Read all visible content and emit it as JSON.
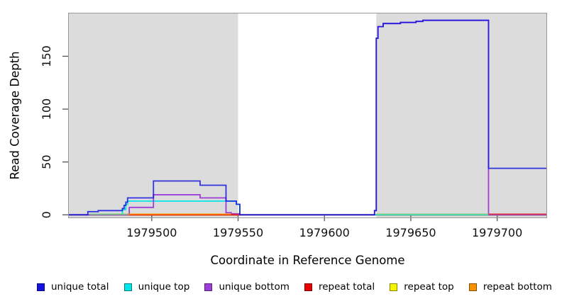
{
  "chart_data": {
    "type": "line",
    "style": "step",
    "title": "",
    "xlabel": "Coordinate in Reference Genome",
    "ylabel": "Read Coverage Depth",
    "xlim": [
      1979452,
      1979728.5
    ],
    "ylim": [
      -2.5,
      190.5
    ],
    "x_ticks": [
      1979500,
      1979550,
      1979600,
      1979650,
      1979700
    ],
    "y_ticks": [
      0,
      50,
      100,
      150
    ],
    "grid": false,
    "panel_bg": "#ffffff",
    "shaded_regions": [
      {
        "x0": 1979452,
        "x1": 1979550,
        "color": "#dcdcdc"
      },
      {
        "x0": 1979630,
        "x1": 1979728.5,
        "color": "#dcdcdc"
      }
    ],
    "legend_position": "bottom",
    "series": [
      {
        "name": "unique total",
        "color": "#1414e0",
        "points": [
          [
            1979452,
            0
          ],
          [
            1979463,
            3
          ],
          [
            1979469,
            4
          ],
          [
            1979483,
            6
          ],
          [
            1979484,
            9
          ],
          [
            1979485,
            12
          ],
          [
            1979486,
            16
          ],
          [
            1979501,
            32
          ],
          [
            1979528,
            28
          ],
          [
            1979543,
            13
          ],
          [
            1979549,
            10
          ],
          [
            1979551,
            0
          ],
          [
            1979629,
            4
          ],
          [
            1979630,
            167
          ],
          [
            1979631,
            178
          ],
          [
            1979634,
            181
          ],
          [
            1979644,
            182
          ],
          [
            1979653,
            183
          ],
          [
            1979657,
            184
          ],
          [
            1979695,
            44
          ],
          [
            1979728.5,
            44
          ]
        ]
      },
      {
        "name": "unique top",
        "color": "#00e5e5",
        "points": [
          [
            1979452,
            0
          ],
          [
            1979483,
            5
          ],
          [
            1979485,
            10
          ],
          [
            1979486,
            13
          ],
          [
            1979549,
            10
          ],
          [
            1979551,
            0
          ],
          [
            1979728.5,
            0
          ]
        ]
      },
      {
        "name": "unique bottom",
        "color": "#9d3fd6",
        "points": [
          [
            1979452,
            0
          ],
          [
            1979487,
            7
          ],
          [
            1979501,
            19
          ],
          [
            1979528,
            16
          ],
          [
            1979543,
            2
          ],
          [
            1979546,
            1
          ],
          [
            1979551,
            0
          ],
          [
            1979629,
            4
          ],
          [
            1979630,
            167
          ],
          [
            1979631,
            178
          ],
          [
            1979634,
            181
          ],
          [
            1979644,
            182
          ],
          [
            1979653,
            183
          ],
          [
            1979657,
            184
          ],
          [
            1979695,
            0
          ],
          [
            1979728.5,
            0
          ]
        ]
      },
      {
        "name": "repeat total",
        "color": "#e60000",
        "points": [
          [
            1979452,
            0
          ],
          [
            1979728.5,
            0
          ]
        ]
      },
      {
        "name": "repeat top",
        "color": "#f5f500",
        "points": [
          [
            1979452,
            0
          ],
          [
            1979728.5,
            0
          ]
        ]
      },
      {
        "name": "repeat bottom",
        "color": "#f59300",
        "points": [
          [
            1979452,
            0
          ],
          [
            1979728.5,
            0
          ]
        ]
      }
    ],
    "baseline_segments": [
      {
        "x0": 1979464,
        "x1": 1979486,
        "color": "#7ccb7c"
      },
      {
        "x0": 1979486,
        "x1": 1979546,
        "color": "#ff8c00"
      },
      {
        "x0": 1979546,
        "x1": 1979551,
        "color": "#cc3366"
      },
      {
        "x0": 1979630,
        "x1": 1979695,
        "color": "#85cc85"
      },
      {
        "x0": 1979695,
        "x1": 1979728.5,
        "color": "#dc3345"
      }
    ],
    "axis_color": "#555555",
    "panel_border_color": "#999999",
    "tick_label_color": "#111111"
  }
}
